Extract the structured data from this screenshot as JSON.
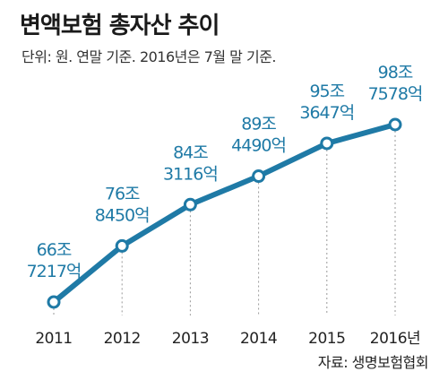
{
  "title": "변액보험 총자산 추이",
  "subtitle": "단위: 원. 연말 기준. 2016년은 7월 말 기준.",
  "source": "자료: 생명보험협회",
  "colors": {
    "line": "#1f7aa6",
    "marker_fill": "#ffffff",
    "label": "#1f7aa6",
    "guide": "#999999",
    "tick": "#222222"
  },
  "chart_data": {
    "type": "line",
    "categories": [
      "2011",
      "2012",
      "2013",
      "2014",
      "2015",
      "2016년"
    ],
    "values": [
      66.7217,
      76.845,
      84.3116,
      89.449,
      95.3647,
      98.7578
    ],
    "data_labels": [
      [
        "66조",
        "7217억"
      ],
      [
        "76조",
        "8450억"
      ],
      [
        "84조",
        "3116억"
      ],
      [
        "89조",
        "4490억"
      ],
      [
        "95조",
        "3647억"
      ],
      [
        "98조",
        "7578억"
      ]
    ],
    "units": "원",
    "grid": false,
    "legend": "none"
  }
}
